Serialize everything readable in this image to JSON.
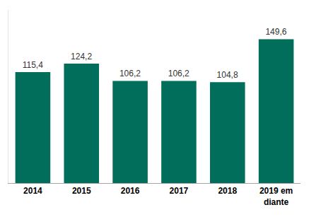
{
  "chart_data": {
    "type": "bar",
    "categories": [
      "2014",
      "2015",
      "2016",
      "2017",
      "2018",
      "2019 em diante"
    ],
    "values": [
      115.4,
      124.2,
      106.2,
      106.2,
      104.8,
      149.6
    ],
    "value_labels": [
      "115,4",
      "124,2",
      "106,2",
      "106,2",
      "104,8",
      "149,6"
    ],
    "color": "#006e5a",
    "ylim": [
      0,
      180
    ],
    "grid": false,
    "data_labels": true,
    "tick_labels": "x"
  }
}
